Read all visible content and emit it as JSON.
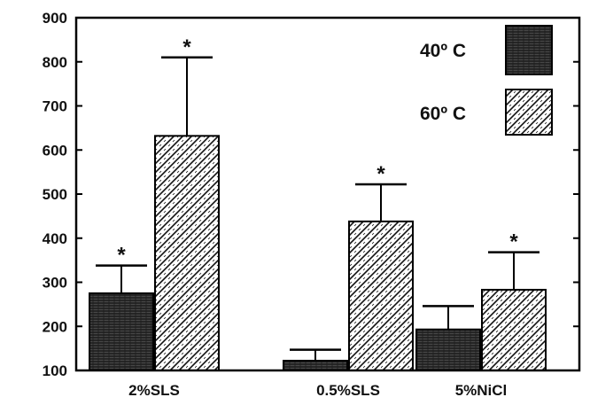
{
  "chart_data": {
    "type": "bar",
    "categories": [
      "2%SLS",
      "0.5%SLS",
      "5%NiCl"
    ],
    "series": [
      {
        "name": "40º C",
        "values": [
          275,
          122,
          193
        ],
        "errors": [
          63,
          25,
          53
        ],
        "significant": [
          true,
          false,
          false
        ],
        "color": "#2a2a2a",
        "pattern": "dark-weave"
      },
      {
        "name": "60º C",
        "values": [
          632,
          438,
          283
        ],
        "errors": [
          178,
          84,
          85
        ],
        "significant": [
          true,
          true,
          true
        ],
        "color": "#ffffff",
        "pattern": "diagonal-hatch"
      }
    ],
    "ylim": [
      100,
      900
    ],
    "yticks": [
      100,
      200,
      300,
      400,
      500,
      600,
      700,
      800,
      900
    ],
    "significance_marker": "*",
    "legend_position": "top-right",
    "title": "",
    "xlabel": "",
    "ylabel": ""
  }
}
